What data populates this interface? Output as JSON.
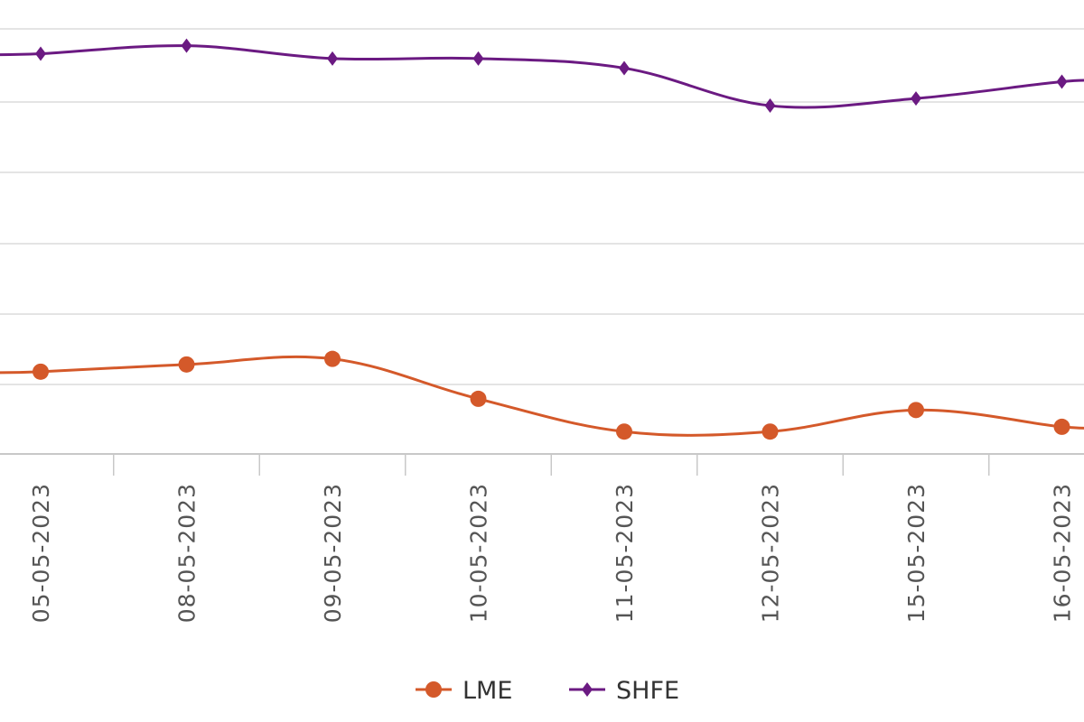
{
  "chart_data": {
    "type": "line",
    "categories": [
      "05-05-2023",
      "08-05-2023",
      "09-05-2023",
      "10-05-2023",
      "11-05-2023",
      "12-05-2023",
      "15-05-2023",
      "16-05-2023"
    ],
    "series": [
      {
        "name": "LME",
        "color": "#d4592a",
        "marker": "circle",
        "values": [
          10.15,
          10.6,
          10.95,
          8.45,
          6.4,
          6.4,
          7.75,
          6.7
        ]
      },
      {
        "name": "SHFE",
        "color": "#6b1a82",
        "marker": "diamond",
        "values": [
          30.05,
          30.55,
          29.75,
          29.75,
          29.15,
          26.8,
          27.25,
          28.3
        ]
      }
    ],
    "ylim": [
      5,
      32
    ],
    "grid": true,
    "legend": "bottom-center",
    "title": "",
    "xlabel": "",
    "ylabel": ""
  }
}
